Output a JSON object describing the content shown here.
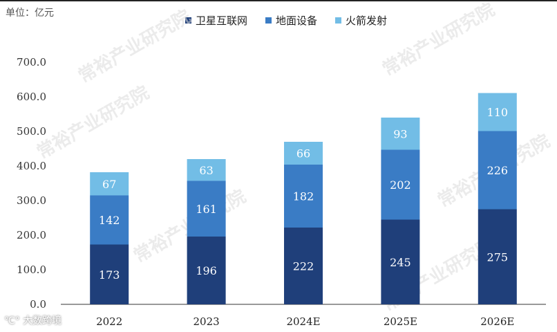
{
  "unit_label": "单位：亿元",
  "watermark_text": "常裕产业研究院",
  "brand_badge": "大数跨境",
  "colors": {
    "series1": "#1f3f7a",
    "series2": "#3a7cc5",
    "series3": "#72bde6",
    "axis": "#333333",
    "watermark": "#dcdcdc"
  },
  "chart_data": {
    "type": "bar",
    "stacked": true,
    "categories": [
      "2022",
      "2023",
      "2024E",
      "2025E",
      "2026E"
    ],
    "series": [
      {
        "name": "卫星互联网",
        "values": [
          173,
          196,
          222,
          245,
          275
        ]
      },
      {
        "name": "地面设备",
        "values": [
          142,
          161,
          182,
          202,
          226
        ]
      },
      {
        "name": "火箭发射",
        "values": [
          67,
          63,
          66,
          93,
          110
        ]
      }
    ],
    "ylim": [
      0,
      700
    ],
    "yticks": [
      "0.0",
      "100.0",
      "200.0",
      "300.0",
      "400.0",
      "500.0",
      "600.0",
      "700.0"
    ],
    "grid": false,
    "legend_position": "top-center"
  }
}
